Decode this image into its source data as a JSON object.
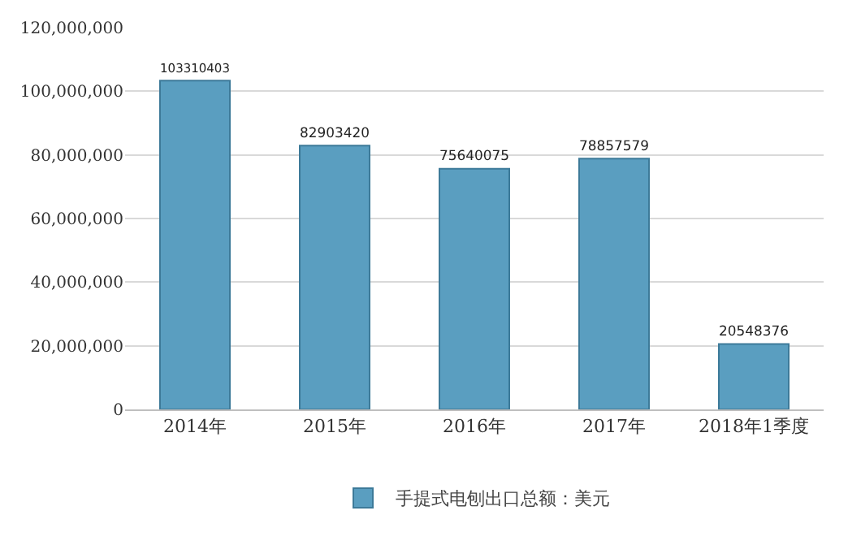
{
  "chart_data": {
    "type": "bar",
    "categories": [
      "2014年",
      "2015年",
      "2016年",
      "2017年",
      "2018年1季度"
    ],
    "series": [
      {
        "name": "手提式电刨出口总额：美元",
        "color": "#5a9ec0",
        "values": [
          103310403,
          82903420,
          75640075,
          78857579,
          20548376
        ]
      }
    ],
    "data_labels": true,
    "ylim": [
      0,
      120000000
    ],
    "yticks": [
      0,
      {
        "value": 20000000,
        "label": "20,000,000"
      },
      {
        "value": 40000000,
        "label": "40,000,000"
      },
      {
        "value": 60000000,
        "label": "60,000,000"
      },
      {
        "value": 80000000,
        "label": "80,000,000"
      },
      {
        "value": 100000000,
        "label": "100,000,000"
      },
      {
        "value": 120000000,
        "label": "120,000,000"
      }
    ],
    "grid": "y",
    "legend": "bottom"
  }
}
